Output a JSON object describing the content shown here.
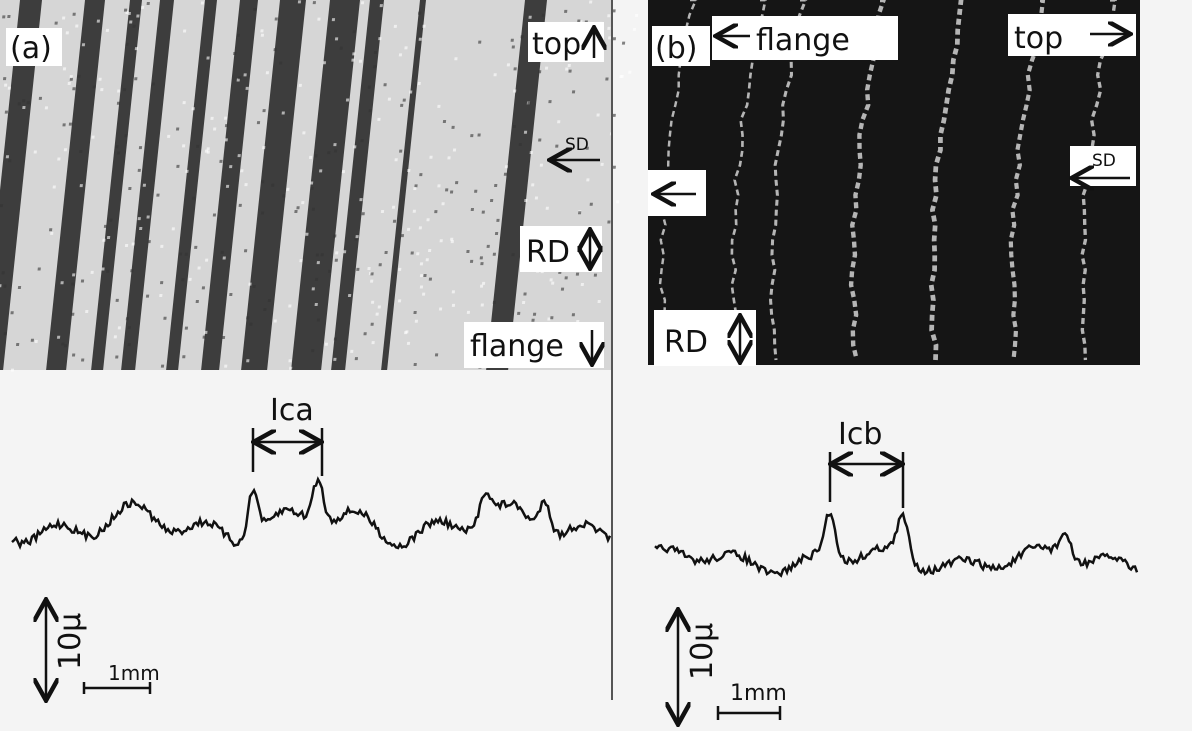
{
  "figure": {
    "panels": [
      {
        "label": "(a)",
        "top": "top",
        "sd": "SD",
        "rd": "RD",
        "flange": "flange",
        "interval": "Ica",
        "vertical_scale": "10μ",
        "horizontal_scale": "1mm"
      },
      {
        "label": "(b)",
        "top": "top",
        "sd": "SD",
        "rd": "RD",
        "flange": "flange",
        "interval": "Icb",
        "vertical_scale": "10μ",
        "horizontal_scale": "1mm"
      }
    ]
  }
}
